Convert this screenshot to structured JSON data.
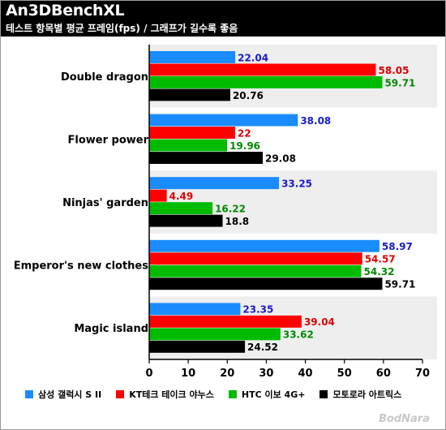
{
  "header": {
    "title": "An3DBenchXL",
    "subtitle": "테스트 항목별 평균 프레임(fps) / 그래프가 길수록 좋음"
  },
  "colors": {
    "background": "#ffffff",
    "band": "#eeeeee",
    "header": "#000000"
  },
  "chart_data": {
    "type": "bar",
    "orientation": "horizontal",
    "title": "An3DBenchXL",
    "subtitle": "테스트 항목별 평균 프레임(fps) / 그래프가 길수록 좋음",
    "categories": [
      "Double dragon",
      "Flower power",
      "Ninjas' garden",
      "Emperor's new clothes",
      "Magic island"
    ],
    "xlim": [
      0,
      70
    ],
    "xticks": [
      0,
      10,
      20,
      30,
      40,
      50,
      60,
      70
    ],
    "legend_position": "bottom",
    "grid": false,
    "series": [
      {
        "name": "삼성 갤럭시 S II",
        "color": "#1a8cff",
        "label_color": "#1a1acc",
        "values": [
          22.04,
          38.08,
          33.25,
          58.97,
          23.35
        ]
      },
      {
        "name": "KT테크 테이크 야누스",
        "color": "#ff0000",
        "label_color": "#dd0000",
        "values": [
          58.05,
          22,
          4.49,
          54.57,
          39.04
        ]
      },
      {
        "name": "HTC 이보 4G+",
        "color": "#00bb00",
        "label_color": "#008800",
        "values": [
          59.71,
          19.96,
          16.22,
          54.32,
          33.62
        ]
      },
      {
        "name": "모토로라 아트릭스",
        "color": "#000000",
        "label_color": "#000000",
        "values": [
          20.76,
          29.08,
          18.8,
          59.71,
          24.52
        ]
      }
    ]
  },
  "watermark": {
    "text": "BodNara"
  }
}
